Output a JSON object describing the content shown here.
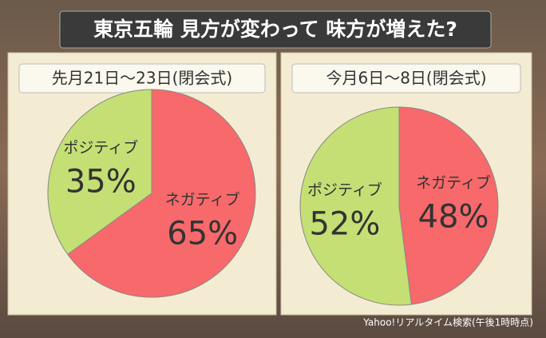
{
  "title": "東京五輪 見方が変わって 味方が増えた?",
  "source": "Yahoo!リアルタイム検索(午後1時時点)",
  "chart_data": [
    {
      "type": "pie",
      "title": "先月21日〜23日(閉会式)",
      "categories": [
        "ポジティブ",
        "ネガティブ"
      ],
      "values": [
        35,
        65
      ],
      "value_labels": [
        "35%",
        "65%"
      ],
      "colors": [
        "#c4df74",
        "#f7696b"
      ]
    },
    {
      "type": "pie",
      "title": "今月6日〜8日(閉会式)",
      "categories": [
        "ポジティブ",
        "ネガティブ"
      ],
      "values": [
        52,
        48
      ],
      "value_labels": [
        "52%",
        "48%"
      ],
      "colors": [
        "#c4df74",
        "#f7696b"
      ]
    }
  ]
}
